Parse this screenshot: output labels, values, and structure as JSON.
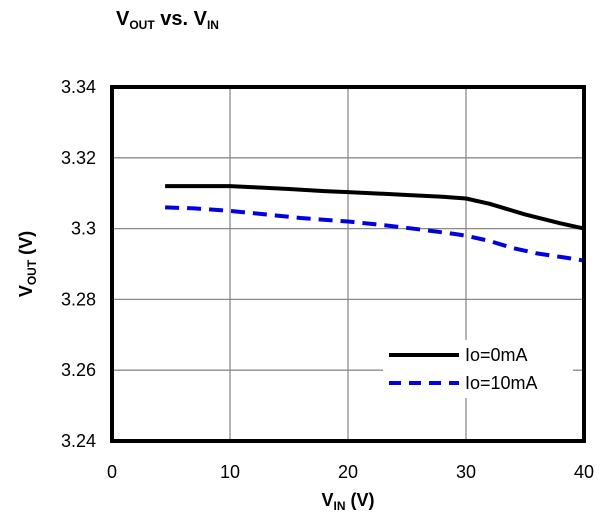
{
  "chart_data": {
    "type": "line",
    "title": {
      "main": "V",
      "sub1": "OUT",
      "mid": " vs. V",
      "sub2": "IN"
    },
    "xlabel": {
      "main": "V",
      "sub": "IN",
      "suffix": " (V)"
    },
    "ylabel": {
      "main": "V",
      "sub": "OUT",
      "suffix": " (V)"
    },
    "xlim": [
      0,
      40
    ],
    "ylim": [
      3.24,
      3.34
    ],
    "xticks": [
      "0",
      "10",
      "20",
      "30",
      "40"
    ],
    "yticks": [
      "3.24",
      "3.26",
      "3.28",
      "3.3",
      "3.32",
      "3.34"
    ],
    "grid": true,
    "legend_position": "lower-right",
    "series": [
      {
        "name": "Io=0mA",
        "color": "#000000",
        "style": "solid",
        "x": [
          4.5,
          6,
          8,
          10,
          12,
          15,
          18,
          20,
          22,
          25,
          28,
          30,
          32,
          35,
          38,
          40
        ],
        "y": [
          3.312,
          3.312,
          3.312,
          3.312,
          3.3117,
          3.3112,
          3.3106,
          3.3103,
          3.31,
          3.3095,
          3.309,
          3.3085,
          3.307,
          3.304,
          3.3015,
          3.3
        ]
      },
      {
        "name": "Io=10mA",
        "color": "#0000e0",
        "style": "dashed",
        "x": [
          4.5,
          7,
          10,
          13,
          16,
          20,
          23,
          26,
          29,
          30,
          32,
          34,
          36,
          38,
          40
        ],
        "y": [
          3.306,
          3.3057,
          3.305,
          3.304,
          3.303,
          3.302,
          3.301,
          3.2998,
          3.2985,
          3.298,
          3.2965,
          3.2945,
          3.293,
          3.292,
          3.291
        ]
      }
    ]
  }
}
